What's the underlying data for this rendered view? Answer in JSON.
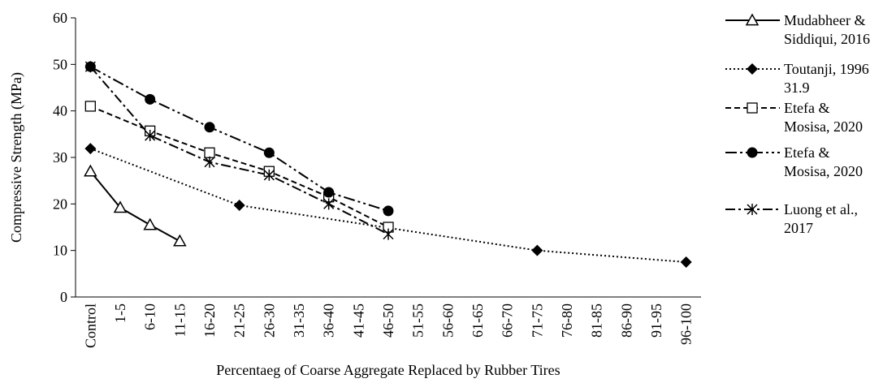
{
  "chart_data": {
    "type": "line",
    "categories": [
      "Control",
      "1-5",
      "6-10",
      "11-15",
      "16-20",
      "21-25",
      "26-30",
      "31-35",
      "36-40",
      "41-45",
      "46-50",
      "51-55",
      "56-60",
      "61-65",
      "66-70",
      "71-75",
      "76-80",
      "81-85",
      "86-90",
      "91-95",
      "96-100"
    ],
    "x_label": "Percentaeg of Coarse Aggregate Replaced by Rubber Tires",
    "y_label": "Compressive Strength (MPa)",
    "ylim": [
      0,
      60
    ],
    "yticks": [
      0,
      10,
      20,
      30,
      40,
      50,
      60
    ],
    "connect_gaps": true,
    "legend": "right",
    "series": [
      {
        "name": "Mudabheer &\nSiddiqui, 2016",
        "color": "#000000",
        "marker": "triangle-open",
        "dash": "solid",
        "values": [
          27,
          19.2,
          15.5,
          12,
          null,
          null,
          null,
          null,
          null,
          null,
          null,
          null,
          null,
          null,
          null,
          null,
          null,
          null,
          null,
          null,
          null
        ]
      },
      {
        "name": "Toutanji, 1996\n31.9",
        "color": "#000000",
        "marker": "diamond",
        "dash": "dotted",
        "values": [
          31.9,
          null,
          null,
          null,
          null,
          19.7,
          null,
          null,
          null,
          null,
          null,
          null,
          null,
          null,
          null,
          10,
          null,
          null,
          null,
          null,
          7.5
        ]
      },
      {
        "name": "Etefa &\nMosisa, 2020",
        "color": "#000000",
        "marker": "square-open",
        "dash": "dashed",
        "values": [
          41,
          null,
          35.7,
          null,
          31,
          null,
          27,
          null,
          21.5,
          null,
          15,
          null,
          null,
          null,
          null,
          null,
          null,
          null,
          null,
          null,
          null
        ]
      },
      {
        "name": "Etefa &\nMosisa, 2020",
        "color": "#000000",
        "marker": "circle",
        "dash": "dash-dot-dot",
        "values": [
          49.5,
          null,
          42.5,
          null,
          36.5,
          null,
          31,
          null,
          22.5,
          null,
          18.5,
          null,
          null,
          null,
          null,
          null,
          null,
          null,
          null,
          null,
          null
        ]
      },
      {
        "name": "Luong et al.,\n2017",
        "color": "#000000",
        "marker": "asterisk",
        "dash": "dash-dot",
        "values": [
          49.5,
          null,
          34.7,
          null,
          29,
          null,
          26.2,
          null,
          20,
          null,
          13.5,
          null,
          null,
          null,
          null,
          null,
          null,
          null,
          null,
          null,
          null
        ]
      }
    ]
  }
}
